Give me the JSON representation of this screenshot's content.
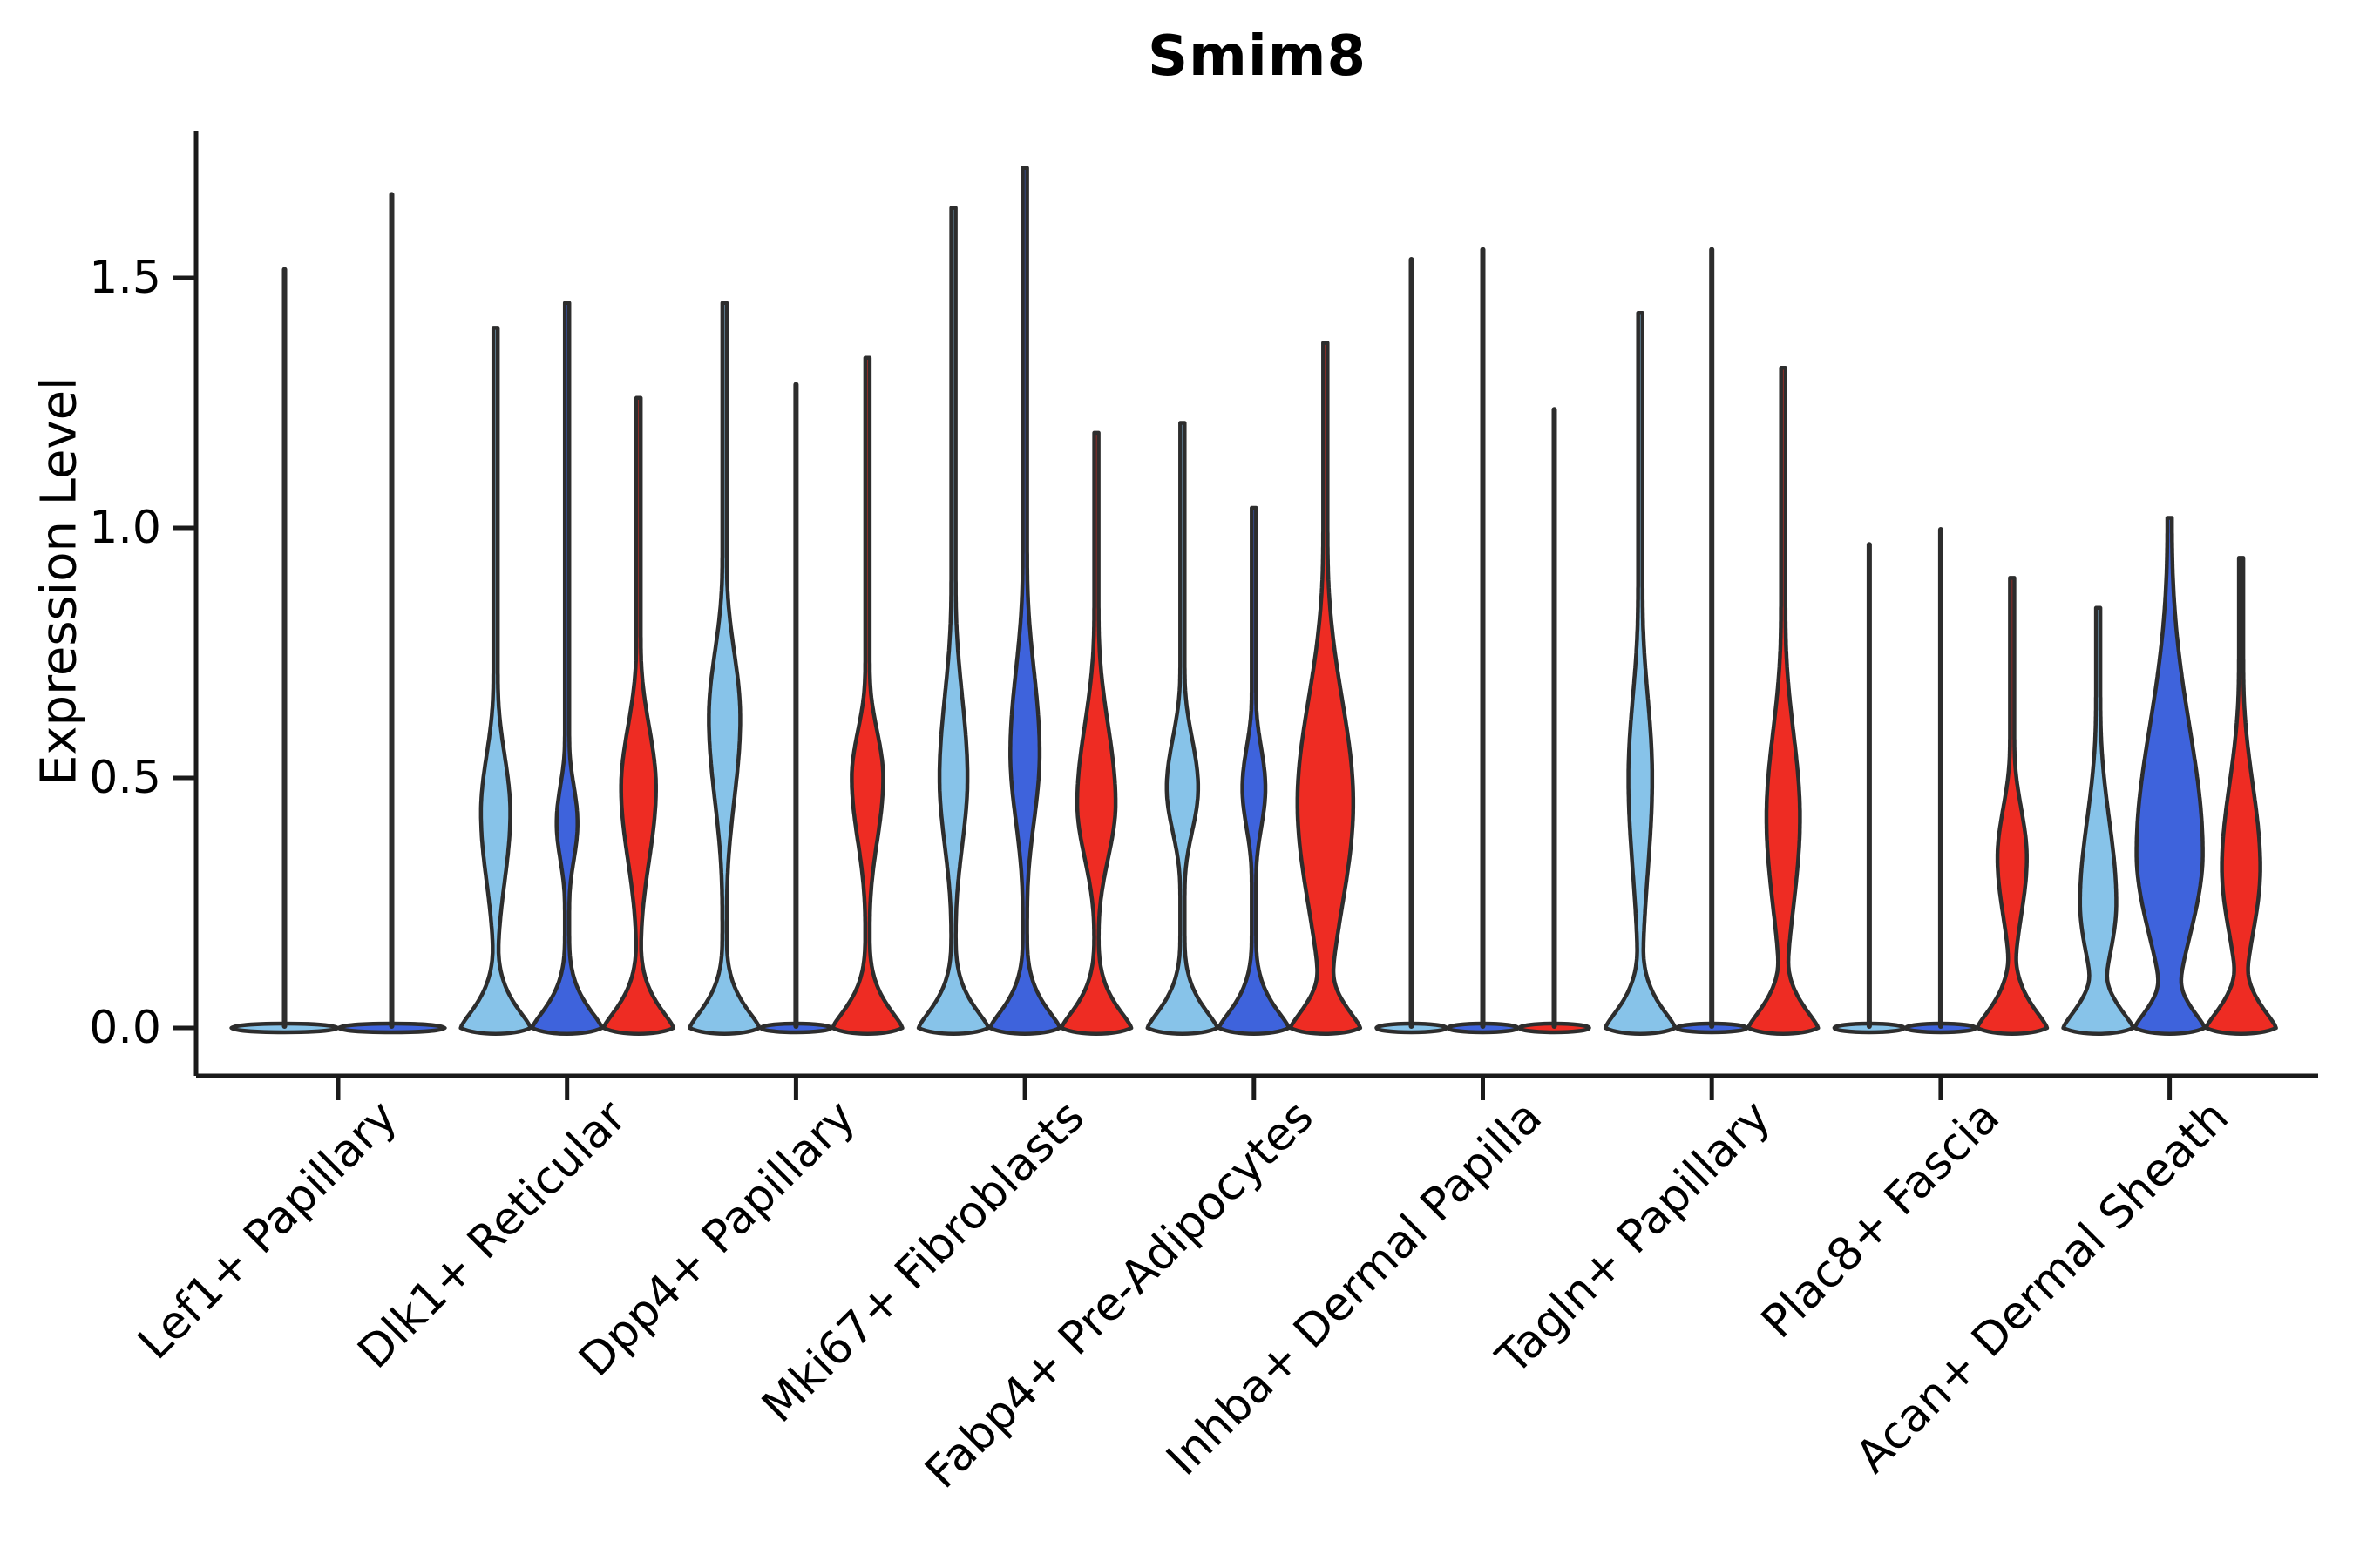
{
  "chart_data": {
    "type": "violin",
    "title": "Smim8",
    "ylabel": "Expression Level",
    "xlabel": "",
    "yticks": [
      "0.0",
      "0.5",
      "1.0",
      "1.5"
    ],
    "ytick_values": [
      0.0,
      0.5,
      1.0,
      1.5
    ],
    "ylim": [
      -0.09,
      1.79
    ],
    "grid": "off",
    "legend": "none",
    "palette": {
      "skyblue": "#87C3E9",
      "royalblue": "#3E63DC",
      "red": "#EE2C23"
    },
    "outline_color": "#2D2D2D",
    "axis_color": "#1A1A1A",
    "categories": [
      "Lef1+ Papillary",
      "Dlk1+ Reticular",
      "Dpp4+ Papillary",
      "Mki67+ Fibroblasts",
      "Fabp4+ Pre-Adipocytes",
      "Inhba+ Dermal Papilla",
      "Tagln+ Papillary",
      "Plac8+ Fascia",
      "Acan+ Dermal Sheath"
    ],
    "groups": [
      {
        "label": "Lef1+ Papillary",
        "violins": [
          {
            "series": "skyblue",
            "max": 1.52,
            "base": "flat",
            "bulge": null
          },
          {
            "series": "royalblue",
            "max": 1.67,
            "base": "flat",
            "bulge": null
          }
        ]
      },
      {
        "label": "Dlk1+ Reticular",
        "violins": [
          {
            "series": "skyblue",
            "max": 1.4,
            "base": "bell",
            "bulge": {
              "lo": 0.18,
              "peak": 0.43,
              "hi": 0.64,
              "w": 0.42
            }
          },
          {
            "series": "royalblue",
            "max": 1.45,
            "base": "bell",
            "bulge": {
              "lo": 0.27,
              "peak": 0.41,
              "hi": 0.55,
              "w": 0.3
            }
          },
          {
            "series": "red",
            "max": 1.26,
            "base": "bell",
            "bulge": {
              "lo": 0.22,
              "peak": 0.48,
              "hi": 0.7,
              "w": 0.5
            }
          }
        ]
      },
      {
        "label": "Dpp4+ Papillary",
        "violins": [
          {
            "series": "skyblue",
            "max": 1.45,
            "base": "bell",
            "bulge": {
              "lo": 0.32,
              "peak": 0.62,
              "hi": 0.86,
              "w": 0.45
            }
          },
          {
            "series": "royalblue",
            "max": 1.29,
            "base": "flat",
            "bulge": null
          },
          {
            "series": "red",
            "max": 1.34,
            "base": "bell",
            "bulge": {
              "lo": 0.27,
              "peak": 0.5,
              "hi": 0.67,
              "w": 0.45
            }
          }
        ]
      },
      {
        "label": "Mki67+ Fibroblasts",
        "violins": [
          {
            "series": "skyblue",
            "max": 1.64,
            "base": "bell",
            "bulge": {
              "lo": 0.25,
              "peak": 0.5,
              "hi": 0.8,
              "w": 0.4
            }
          },
          {
            "series": "royalblue",
            "max": 1.72,
            "base": "bell",
            "bulge": {
              "lo": 0.3,
              "peak": 0.55,
              "hi": 0.85,
              "w": 0.42
            }
          },
          {
            "series": "red",
            "max": 1.19,
            "base": "bell",
            "bulge": {
              "lo": 0.25,
              "peak": 0.45,
              "hi": 0.73,
              "w": 0.55
            }
          }
        ]
      },
      {
        "label": "Fabp4+ Pre-Adipocytes",
        "violins": [
          {
            "series": "skyblue",
            "max": 1.21,
            "base": "bell",
            "bulge": {
              "lo": 0.32,
              "peak": 0.48,
              "hi": 0.66,
              "w": 0.45
            }
          },
          {
            "series": "royalblue",
            "max": 1.04,
            "base": "bell",
            "bulge": {
              "lo": 0.33,
              "peak": 0.48,
              "hi": 0.63,
              "w": 0.33
            }
          },
          {
            "series": "red",
            "max": 1.37,
            "base": "bell",
            "bulge": {
              "lo": 0.08,
              "peak": 0.45,
              "hi": 0.82,
              "w": 0.8
            }
          }
        ]
      },
      {
        "label": "Inhba+ Dermal Papilla",
        "violins": [
          {
            "series": "skyblue",
            "max": 1.54,
            "base": "flat",
            "bulge": null
          },
          {
            "series": "royalblue",
            "max": 1.56,
            "base": "flat",
            "bulge": null
          },
          {
            "series": "red",
            "max": 1.24,
            "base": "flat",
            "bulge": null
          }
        ]
      },
      {
        "label": "Tagln+ Papillary",
        "violins": [
          {
            "series": "skyblue",
            "max": 1.43,
            "base": "bell",
            "bulge": {
              "lo": 0.15,
              "peak": 0.5,
              "hi": 0.8,
              "w": 0.34
            }
          },
          {
            "series": "royalblue",
            "max": 1.56,
            "base": "flat",
            "bulge": null
          },
          {
            "series": "red",
            "max": 1.32,
            "base": "bell",
            "bulge": {
              "lo": 0.1,
              "peak": 0.42,
              "hi": 0.73,
              "w": 0.48
            }
          }
        ]
      },
      {
        "label": "Plac8+ Fascia",
        "violins": [
          {
            "series": "skyblue",
            "max": 0.97,
            "base": "flat",
            "bulge": null
          },
          {
            "series": "royalblue",
            "max": 1.0,
            "base": "flat",
            "bulge": null
          },
          {
            "series": "red",
            "max": 0.9,
            "base": "bell",
            "bulge": {
              "lo": 0.13,
              "peak": 0.34,
              "hi": 0.52,
              "w": 0.42
            }
          }
        ]
      },
      {
        "label": "Acan+ Dermal Sheath",
        "violins": [
          {
            "series": "skyblue",
            "max": 0.84,
            "base": "bell",
            "bulge": {
              "lo": 0.05,
              "peak": 0.25,
              "hi": 0.55,
              "w": 0.52
            }
          },
          {
            "series": "royalblue",
            "max": 1.02,
            "base": "bell",
            "bulge": {
              "lo": 0.05,
              "peak": 0.35,
              "hi": 0.8,
              "w": 0.95
            }
          },
          {
            "series": "red",
            "max": 0.94,
            "base": "bell",
            "bulge": {
              "lo": 0.08,
              "peak": 0.32,
              "hi": 0.62,
              "w": 0.55
            }
          }
        ]
      }
    ]
  }
}
